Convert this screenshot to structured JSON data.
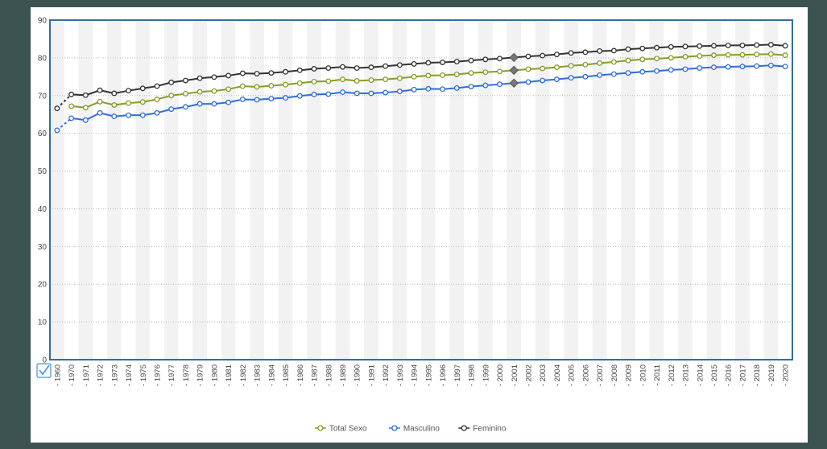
{
  "chart_data": {
    "type": "line",
    "title": "",
    "xlabel": "",
    "ylabel": "",
    "ylim": [
      0,
      90
    ],
    "y_ticks": [
      0,
      10,
      20,
      30,
      40,
      50,
      60,
      70,
      80,
      90
    ],
    "grid": "horizontal dotted",
    "legend_position": "bottom-center",
    "x_tick_prefix": "- ",
    "categories": [
      "1960",
      "1970",
      "1971",
      "1972",
      "1973",
      "1974",
      "1975",
      "1976",
      "1977",
      "1978",
      "1979",
      "1980",
      "1981",
      "1982",
      "1983",
      "1984",
      "1985",
      "1986",
      "1987",
      "1988",
      "1989",
      "1990",
      "1991",
      "1992",
      "1993",
      "1994",
      "1995",
      "1996",
      "1997",
      "1998",
      "1999",
      "2000",
      "2001",
      "2002",
      "2003",
      "2004",
      "2005",
      "2006",
      "2007",
      "2008",
      "2009",
      "2010",
      "2011",
      "2012",
      "2013",
      "2014",
      "2015",
      "2016",
      "2017",
      "2018",
      "2019",
      "2020"
    ],
    "highlight_category": "2001",
    "series": [
      {
        "name": "Total Sexo",
        "color": "#8a9a2a",
        "values": [
          null,
          67.2,
          66.8,
          68.4,
          67.5,
          68.0,
          68.3,
          69.0,
          70.0,
          70.5,
          71.0,
          71.2,
          71.7,
          72.5,
          72.3,
          72.6,
          72.9,
          73.3,
          73.7,
          73.8,
          74.3,
          73.9,
          74.1,
          74.3,
          74.6,
          75.0,
          75.3,
          75.4,
          75.6,
          76.0,
          76.2,
          76.4,
          76.7,
          77.0,
          77.2,
          77.5,
          77.9,
          78.2,
          78.6,
          78.9,
          79.3,
          79.6,
          79.8,
          80.0,
          80.3,
          80.5,
          80.7,
          80.8,
          80.8,
          80.9,
          81.0,
          80.7
        ]
      },
      {
        "name": "Masculino",
        "color": "#2f6ee0",
        "values": [
          60.8,
          64.0,
          63.5,
          65.4,
          64.5,
          64.8,
          64.8,
          65.4,
          66.4,
          67.0,
          67.8,
          67.8,
          68.2,
          69.0,
          68.9,
          69.2,
          69.4,
          69.9,
          70.3,
          70.4,
          70.9,
          70.6,
          70.6,
          70.8,
          71.1,
          71.6,
          71.8,
          71.7,
          72.0,
          72.4,
          72.7,
          73.0,
          73.3,
          73.6,
          74.0,
          74.3,
          74.7,
          75.0,
          75.4,
          75.7,
          76.0,
          76.3,
          76.5,
          76.8,
          77.0,
          77.3,
          77.5,
          77.6,
          77.7,
          77.8,
          78.0,
          77.7
        ]
      },
      {
        "name": "Feminino",
        "color": "#333333",
        "values": [
          66.6,
          70.3,
          70.1,
          71.4,
          70.6,
          71.3,
          71.9,
          72.5,
          73.5,
          74.0,
          74.6,
          74.9,
          75.3,
          75.9,
          75.8,
          76.0,
          76.3,
          76.7,
          77.1,
          77.3,
          77.6,
          77.3,
          77.5,
          77.8,
          78.1,
          78.4,
          78.7,
          78.8,
          79.0,
          79.3,
          79.6,
          79.8,
          80.1,
          80.4,
          80.6,
          80.9,
          81.3,
          81.5,
          81.8,
          81.9,
          82.3,
          82.5,
          82.7,
          82.9,
          83.0,
          83.1,
          83.2,
          83.3,
          83.3,
          83.4,
          83.5,
          83.2
        ]
      }
    ]
  },
  "ui": {
    "checkbox_icon": "checkmark-icon"
  }
}
